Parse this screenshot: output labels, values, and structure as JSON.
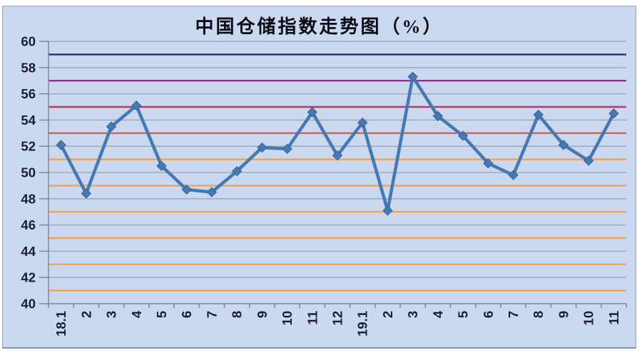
{
  "chart_data": {
    "type": "line",
    "title": "中国仓储指数走势图（%）",
    "categories": [
      "18.1",
      "2",
      "3",
      "4",
      "5",
      "6",
      "7",
      "8",
      "9",
      "10",
      "11",
      "12",
      "19.1",
      "2",
      "3",
      "4",
      "5",
      "6",
      "7",
      "8",
      "9",
      "10",
      "11"
    ],
    "values": [
      52.1,
      48.4,
      53.5,
      55.1,
      50.5,
      48.7,
      48.5,
      50.1,
      51.9,
      51.8,
      54.6,
      51.3,
      53.8,
      47.1,
      57.3,
      54.3,
      52.8,
      50.7,
      49.8,
      54.4,
      52.1,
      50.9,
      54.5
    ],
    "ylim": [
      40,
      60
    ],
    "yticks": [
      60,
      58,
      56,
      54,
      52,
      50,
      48,
      46,
      44,
      42,
      40
    ],
    "grid": "horizontal-gray-every-2",
    "legend": "none",
    "x_label_rotation": -90,
    "reference_lines": [
      {
        "value": 59,
        "color": "#23298a"
      },
      {
        "value": 57,
        "color": "#90338e"
      },
      {
        "value": 55,
        "color": "#c4356c"
      },
      {
        "value": 53,
        "color": "#de5f51"
      },
      {
        "value": 51,
        "color": "#f0a258"
      },
      {
        "value": 49,
        "color": "#f0a258"
      },
      {
        "value": 47,
        "color": "#f0a258"
      },
      {
        "value": 45,
        "color": "#f0a258"
      },
      {
        "value": 43,
        "color": "#f0a258"
      },
      {
        "value": 41,
        "color": "#f0a258"
      }
    ],
    "colors": {
      "background": "#cbd9f0",
      "series_line": "#4678b2",
      "marker_fill": "#4678b2",
      "marker_stroke": "#3a66a0",
      "gridline": "#99a1ae",
      "axis": "#7f8793",
      "tick_label": "#1c1c38",
      "frame_border": "#98a2b3"
    }
  }
}
